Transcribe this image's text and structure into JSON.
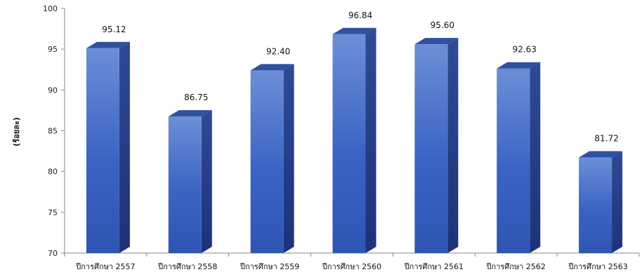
{
  "chart_data": {
    "type": "bar",
    "title": "",
    "xlabel": "",
    "ylabel": "(ร้อยละ)",
    "categories": [
      "ปีการศึกษา 2557",
      "ปีการศึกษา 2558",
      "ปีการศึกษา 2559",
      "ปีการศึกษา 2560",
      "ปีการศึกษา 2561",
      "ปีการศึกษา 2562",
      "ปีการศึกษา 2563"
    ],
    "values": [
      95.12,
      86.75,
      92.4,
      96.84,
      95.6,
      92.63,
      81.72
    ],
    "value_labels": [
      "95.12",
      "86.75",
      "92.40",
      "96.84",
      "95.60",
      "92.63",
      "81.72"
    ],
    "ylim": [
      70,
      100
    ],
    "yticks": [
      "70",
      "75",
      "80",
      "85",
      "90",
      "95",
      "100"
    ],
    "grid": false,
    "style": "3d",
    "colors": {
      "bar_top_light": "#6b8fd6",
      "bar_front": "#3b63c4",
      "bar_side": "#22398a",
      "bar_top": "#30519f",
      "axis": "#888888"
    }
  }
}
